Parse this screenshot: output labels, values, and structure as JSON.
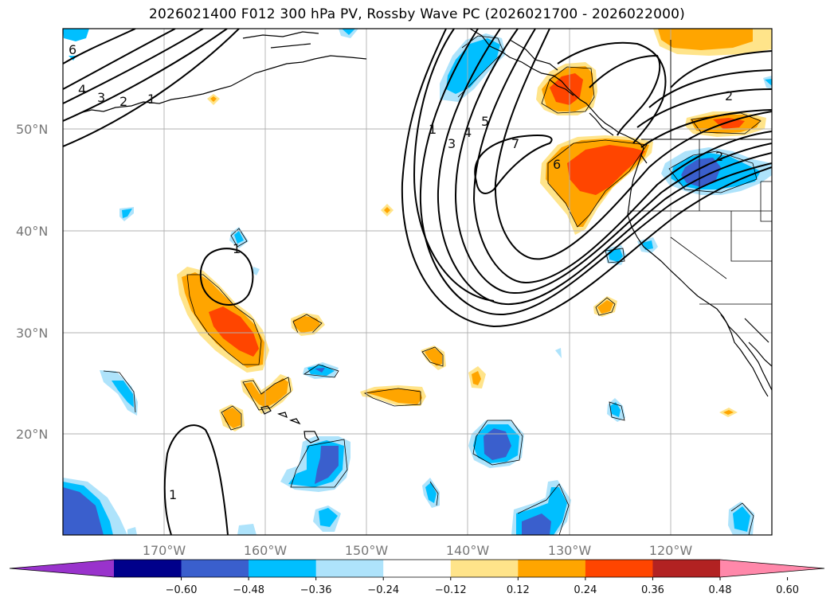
{
  "title": "2026021400 F012 300 hPa PV, Rossby Wave PC (2026021700 - 2026022000)",
  "lat_labels": [
    "50°N",
    "40°N",
    "30°N",
    "20°N"
  ],
  "lon_labels": [
    "170°W",
    "160°W",
    "150°W",
    "140°W",
    "130°W",
    "120°W"
  ],
  "colorbar": {
    "ticks": [
      "−0.60",
      "−0.48",
      "−0.36",
      "−0.24",
      "−0.12",
      "0.12",
      "0.24",
      "0.36",
      "0.48",
      "0.60"
    ],
    "colors": [
      "#9933cc",
      "#00008b",
      "#3a5fcd",
      "#00bfff",
      "#aee3fb",
      "#ffffff",
      "#ffe48a",
      "#ffa500",
      "#ff4500",
      "#b22222",
      "#ff88aa"
    ]
  },
  "contour_labels": [
    "6",
    "4",
    "3",
    "2",
    "1",
    "1",
    "3",
    "4",
    "5",
    "7",
    "6",
    "2",
    "2",
    "1",
    "1"
  ],
  "colors": {
    "light_blue": "#aee3fb",
    "blue": "#00bfff",
    "mid_blue": "#3a5fcd",
    "yellow": "#ffe48a",
    "orange": "#ffa500",
    "red_orange": "#ff4500"
  }
}
